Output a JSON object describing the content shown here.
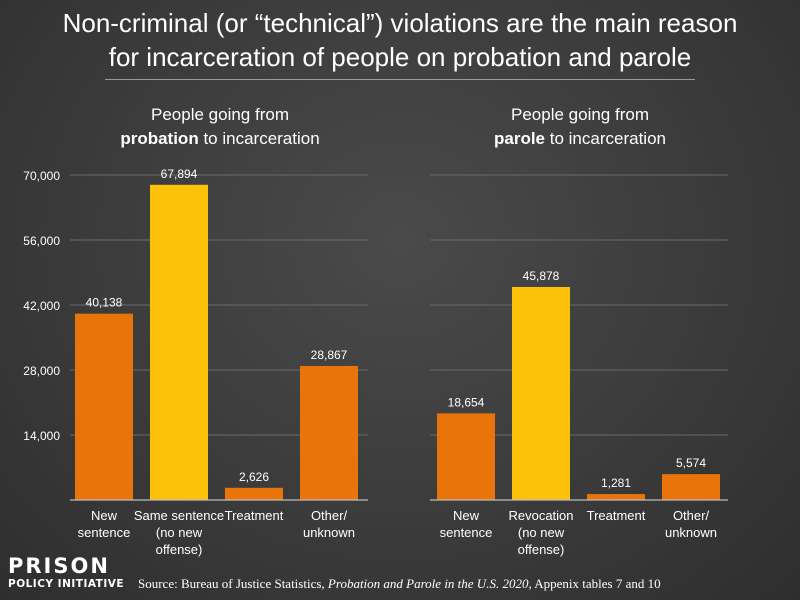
{
  "title_line1": "Non-criminal (or “technical”) violations are the main reason",
  "title_line2": "for incarceration of people on probation and parole",
  "panels": [
    {
      "title_pre": "People going from",
      "title_bold": "probation",
      "title_post": " to incarceration"
    },
    {
      "title_pre": "People going from",
      "title_bold": "parole",
      "title_post": " to incarceration"
    }
  ],
  "source": {
    "prefix": "Source: Bureau of Justice Statistics, ",
    "italic": "Probation and Parole in the U.S. 2020",
    "suffix": ", Appenix tables 7 and 10"
  },
  "logo": {
    "line1": "PRISON",
    "line2": "POLICY INITIATIVE"
  },
  "colors": {
    "orange": "#e8740a",
    "yellow": "#fcc20a",
    "grid": "#6a6a6a",
    "axis": "#bdbdbd"
  },
  "chart_data": [
    {
      "type": "bar",
      "title": "People going from probation to incarceration",
      "categories": [
        [
          "New",
          "sentence"
        ],
        [
          "Same sentence",
          "(no new",
          "offense)"
        ],
        [
          "Treatment"
        ],
        [
          "Other/",
          "unknown"
        ]
      ],
      "values": [
        40138,
        67894,
        2626,
        28867
      ],
      "value_labels": [
        "40,138",
        "67,894",
        "2,626",
        "28,867"
      ],
      "highlight": [
        false,
        true,
        false,
        false
      ],
      "ylim": [
        0,
        70000
      ],
      "yticks": [
        14000,
        28000,
        42000,
        56000,
        70000
      ],
      "ytick_labels": [
        "14,000",
        "28,000",
        "42,000",
        "56,000",
        "70,000"
      ],
      "grid": true
    },
    {
      "type": "bar",
      "title": "People going from parole to incarceration",
      "categories": [
        [
          "New",
          "sentence"
        ],
        [
          "Revocation",
          "(no new",
          "offense)"
        ],
        [
          "Treatment"
        ],
        [
          "Other/",
          "unknown"
        ]
      ],
      "values": [
        18654,
        45878,
        1281,
        5574
      ],
      "value_labels": [
        "18,654",
        "45,878",
        "1,281",
        "5,574"
      ],
      "highlight": [
        false,
        true,
        false,
        false
      ],
      "ylim": [
        0,
        100000
      ],
      "grid": true
    }
  ]
}
